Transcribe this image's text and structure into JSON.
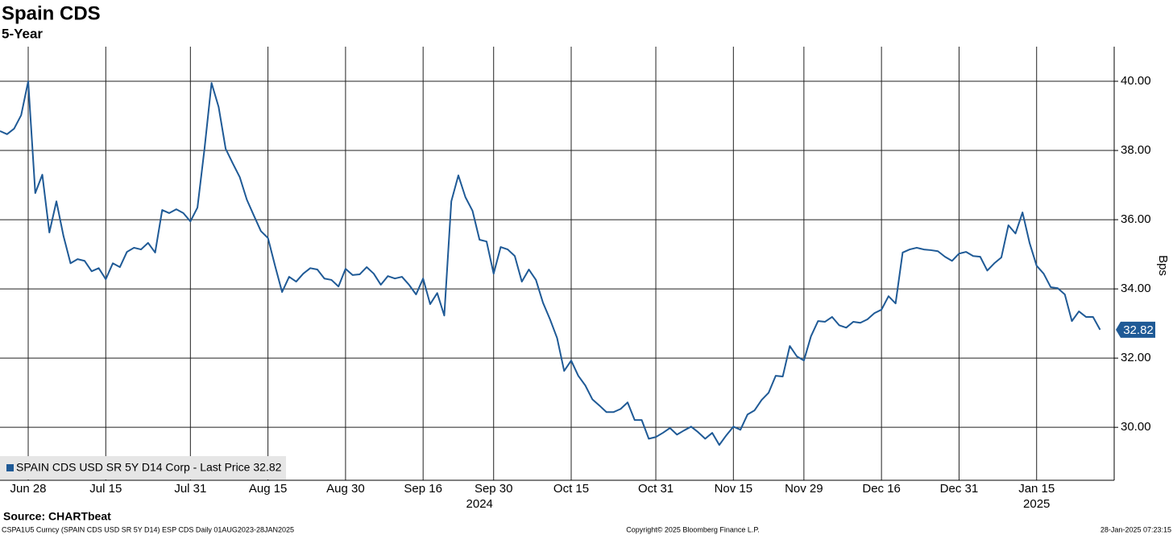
{
  "chart_data": {
    "type": "line",
    "title": "Spain CDS",
    "subtitle": "5-Year",
    "y_label": "Bps",
    "source": "Source: CHARTbeat",
    "footer_left": "CSPA1U5 Curncy (SPAIN CDS USD SR 5Y D14) ESP CDS  Daily 01AUG2023-28JAN2025",
    "footer_center": "Copyright© 2025 Bloomberg Finance L.P.",
    "footer_right": "28-Jan-2025 07:23:15",
    "xlim": [
      0,
      158
    ],
    "xticks": [
      {
        "value": 4,
        "label": "Jun 28"
      },
      {
        "value": 15,
        "label": "Jul 15"
      },
      {
        "value": 27,
        "label": "Jul 31"
      },
      {
        "value": 38,
        "label": "Aug 15"
      },
      {
        "value": 49,
        "label": "Aug 30"
      },
      {
        "value": 60,
        "label": "Sep 16"
      },
      {
        "value": 70,
        "label": "Sep 30"
      },
      {
        "value": 81,
        "label": "Oct 15"
      },
      {
        "value": 93,
        "label": "Oct 31"
      },
      {
        "value": 104,
        "label": "Nov 15"
      },
      {
        "value": 114,
        "label": "Nov 29"
      },
      {
        "value": 125,
        "label": "Dec 16"
      },
      {
        "value": 136,
        "label": "Dec 31"
      },
      {
        "value": 147,
        "label": "Jan 15"
      }
    ],
    "year_ticks": [
      {
        "value": 68,
        "label": "2024"
      },
      {
        "value": 147,
        "label": "2025"
      }
    ],
    "ylim": [
      28.47,
      41.0
    ],
    "yticks": [
      {
        "value": 30,
        "label": "30.00"
      },
      {
        "value": 32,
        "label": "32.00"
      },
      {
        "value": 34,
        "label": "34.00"
      },
      {
        "value": 36,
        "label": "36.00"
      },
      {
        "value": 38,
        "label": "38.00"
      },
      {
        "value": 40,
        "label": "40.00"
      }
    ],
    "grid": true,
    "legend": "bottom-left",
    "series": [
      {
        "name": "SPAIN CDS USD SR 5Y D14 Corp - Last Price 32.82",
        "color": "#1f5a96",
        "values": [
          38.56,
          38.47,
          38.63,
          39.02,
          40.0,
          36.77,
          37.3,
          35.63,
          36.53,
          35.53,
          34.74,
          34.86,
          34.81,
          34.51,
          34.6,
          34.28,
          34.74,
          34.63,
          35.07,
          35.19,
          35.14,
          35.33,
          35.05,
          36.28,
          36.19,
          36.3,
          36.19,
          35.95,
          36.35,
          38.05,
          39.95,
          39.26,
          38.05,
          37.63,
          37.23,
          36.58,
          36.12,
          35.67,
          35.47,
          34.67,
          33.91,
          34.35,
          34.21,
          34.44,
          34.6,
          34.56,
          34.3,
          34.26,
          34.07,
          34.58,
          34.4,
          34.42,
          34.63,
          34.44,
          34.12,
          34.37,
          34.3,
          34.35,
          34.12,
          33.84,
          34.3,
          33.56,
          33.88,
          33.23,
          36.53,
          37.28,
          36.65,
          36.26,
          35.42,
          35.37,
          34.44,
          35.21,
          35.14,
          34.95,
          34.21,
          34.56,
          34.26,
          33.6,
          33.12,
          32.58,
          31.63,
          31.93,
          31.49,
          31.21,
          30.81,
          30.63,
          30.44,
          30.44,
          30.53,
          30.72,
          30.21,
          30.21,
          29.67,
          29.72,
          29.84,
          29.98,
          29.79,
          29.91,
          30.02,
          29.86,
          29.67,
          29.84,
          29.49,
          29.77,
          30.02,
          29.93,
          30.37,
          30.49,
          30.79,
          31.0,
          31.49,
          31.47,
          32.35,
          32.05,
          31.93,
          32.63,
          33.07,
          33.05,
          33.19,
          32.95,
          32.88,
          33.05,
          33.02,
          33.12,
          33.3,
          33.4,
          33.79,
          33.58,
          35.05,
          35.14,
          35.19,
          35.14,
          35.12,
          35.09,
          34.93,
          34.81,
          35.02,
          35.07,
          34.95,
          34.93,
          34.53,
          34.74,
          34.91,
          35.84,
          35.6,
          36.21,
          35.33,
          34.67,
          34.44,
          34.05,
          34.02,
          33.84,
          33.07,
          33.35,
          33.19,
          33.19,
          32.82
        ]
      }
    ]
  }
}
